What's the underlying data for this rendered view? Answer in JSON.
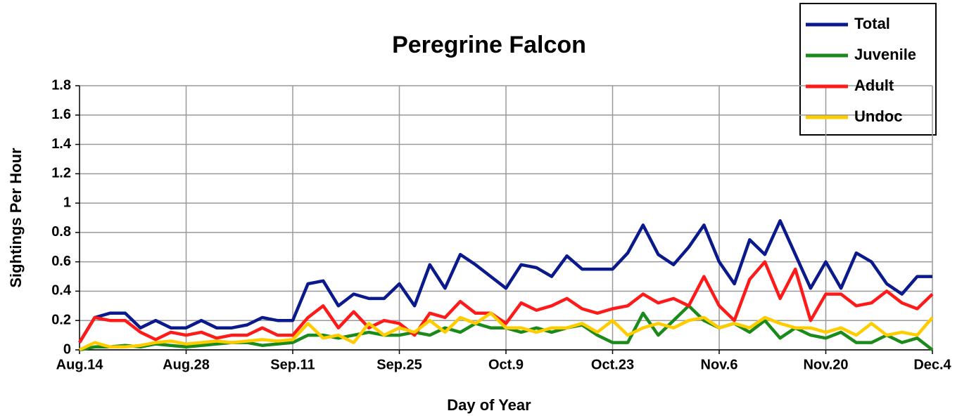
{
  "chart_data": {
    "type": "line",
    "title": "Peregrine Falcon",
    "x_label": "Day of Year",
    "y_label": "Sightings Per Hour",
    "categories": [
      "Aug.14",
      null,
      null,
      null,
      null,
      null,
      null,
      "Aug.28",
      null,
      null,
      null,
      null,
      null,
      null,
      "Sep.11",
      null,
      null,
      null,
      null,
      null,
      null,
      "Sep.25",
      null,
      null,
      null,
      null,
      null,
      null,
      "Oct.9",
      null,
      null,
      null,
      null,
      null,
      null,
      "Oct.23",
      null,
      null,
      null,
      null,
      null,
      null,
      "Nov.6",
      null,
      null,
      null,
      null,
      null,
      null,
      "Nov.20",
      null,
      null,
      null,
      null,
      null,
      null,
      "Dec.4"
    ],
    "series": [
      {
        "name": "Total",
        "color": "#0a1a8c",
        "values": [
          0.05,
          0.22,
          0.25,
          0.25,
          0.15,
          0.2,
          0.15,
          0.15,
          0.2,
          0.15,
          0.15,
          0.17,
          0.22,
          0.2,
          0.2,
          0.45,
          0.47,
          0.3,
          0.38,
          0.35,
          0.35,
          0.45,
          0.3,
          0.58,
          0.42,
          0.65,
          0.58,
          0.5,
          0.42,
          0.58,
          0.56,
          0.5,
          0.64,
          0.55,
          0.55,
          0.55,
          0.66,
          0.85,
          0.65,
          0.58,
          0.7,
          0.85,
          0.6,
          0.45,
          0.75,
          0.65,
          0.88,
          0.65,
          0.42,
          0.6,
          0.42,
          0.66,
          0.6,
          0.45,
          0.38,
          0.5,
          0.5
        ]
      },
      {
        "name": "Juvenile",
        "color": "#1a8a1a",
        "values": [
          0.0,
          0.02,
          0.02,
          0.03,
          0.02,
          0.04,
          0.03,
          0.02,
          0.03,
          0.04,
          0.05,
          0.05,
          0.03,
          0.04,
          0.05,
          0.1,
          0.1,
          0.08,
          0.1,
          0.12,
          0.1,
          0.1,
          0.12,
          0.1,
          0.15,
          0.12,
          0.18,
          0.15,
          0.15,
          0.12,
          0.15,
          0.12,
          0.15,
          0.17,
          0.1,
          0.05,
          0.05,
          0.25,
          0.1,
          0.2,
          0.3,
          0.2,
          0.15,
          0.18,
          0.12,
          0.2,
          0.08,
          0.15,
          0.1,
          0.08,
          0.12,
          0.05,
          0.05,
          0.1,
          0.05,
          0.08,
          0.0
        ]
      },
      {
        "name": "Adult",
        "color": "#ff1a1a",
        "values": [
          0.05,
          0.22,
          0.2,
          0.2,
          0.12,
          0.07,
          0.12,
          0.1,
          0.12,
          0.08,
          0.1,
          0.1,
          0.15,
          0.1,
          0.1,
          0.22,
          0.3,
          0.15,
          0.26,
          0.15,
          0.2,
          0.18,
          0.1,
          0.25,
          0.22,
          0.33,
          0.25,
          0.25,
          0.18,
          0.32,
          0.27,
          0.3,
          0.35,
          0.28,
          0.25,
          0.28,
          0.3,
          0.38,
          0.32,
          0.35,
          0.3,
          0.5,
          0.3,
          0.2,
          0.48,
          0.6,
          0.35,
          0.55,
          0.2,
          0.38,
          0.38,
          0.3,
          0.32,
          0.4,
          0.32,
          0.28,
          0.38
        ]
      },
      {
        "name": "Undoc",
        "color": "#ffcc00",
        "values": [
          0.0,
          0.05,
          0.02,
          0.02,
          0.03,
          0.05,
          0.06,
          0.04,
          0.05,
          0.06,
          0.05,
          0.06,
          0.07,
          0.06,
          0.07,
          0.18,
          0.08,
          0.1,
          0.05,
          0.18,
          0.1,
          0.15,
          0.12,
          0.2,
          0.12,
          0.22,
          0.18,
          0.25,
          0.15,
          0.15,
          0.12,
          0.15,
          0.15,
          0.18,
          0.12,
          0.2,
          0.1,
          0.15,
          0.18,
          0.15,
          0.2,
          0.22,
          0.15,
          0.18,
          0.15,
          0.22,
          0.18,
          0.15,
          0.15,
          0.12,
          0.15,
          0.1,
          0.18,
          0.1,
          0.12,
          0.1,
          0.22
        ]
      }
    ],
    "ylim": [
      0,
      1.8
    ],
    "yticks": [
      0,
      0.2,
      0.4,
      0.6,
      0.8,
      1,
      1.2,
      1.4,
      1.6,
      1.8
    ],
    "grid": true,
    "legend": "top-right"
  }
}
